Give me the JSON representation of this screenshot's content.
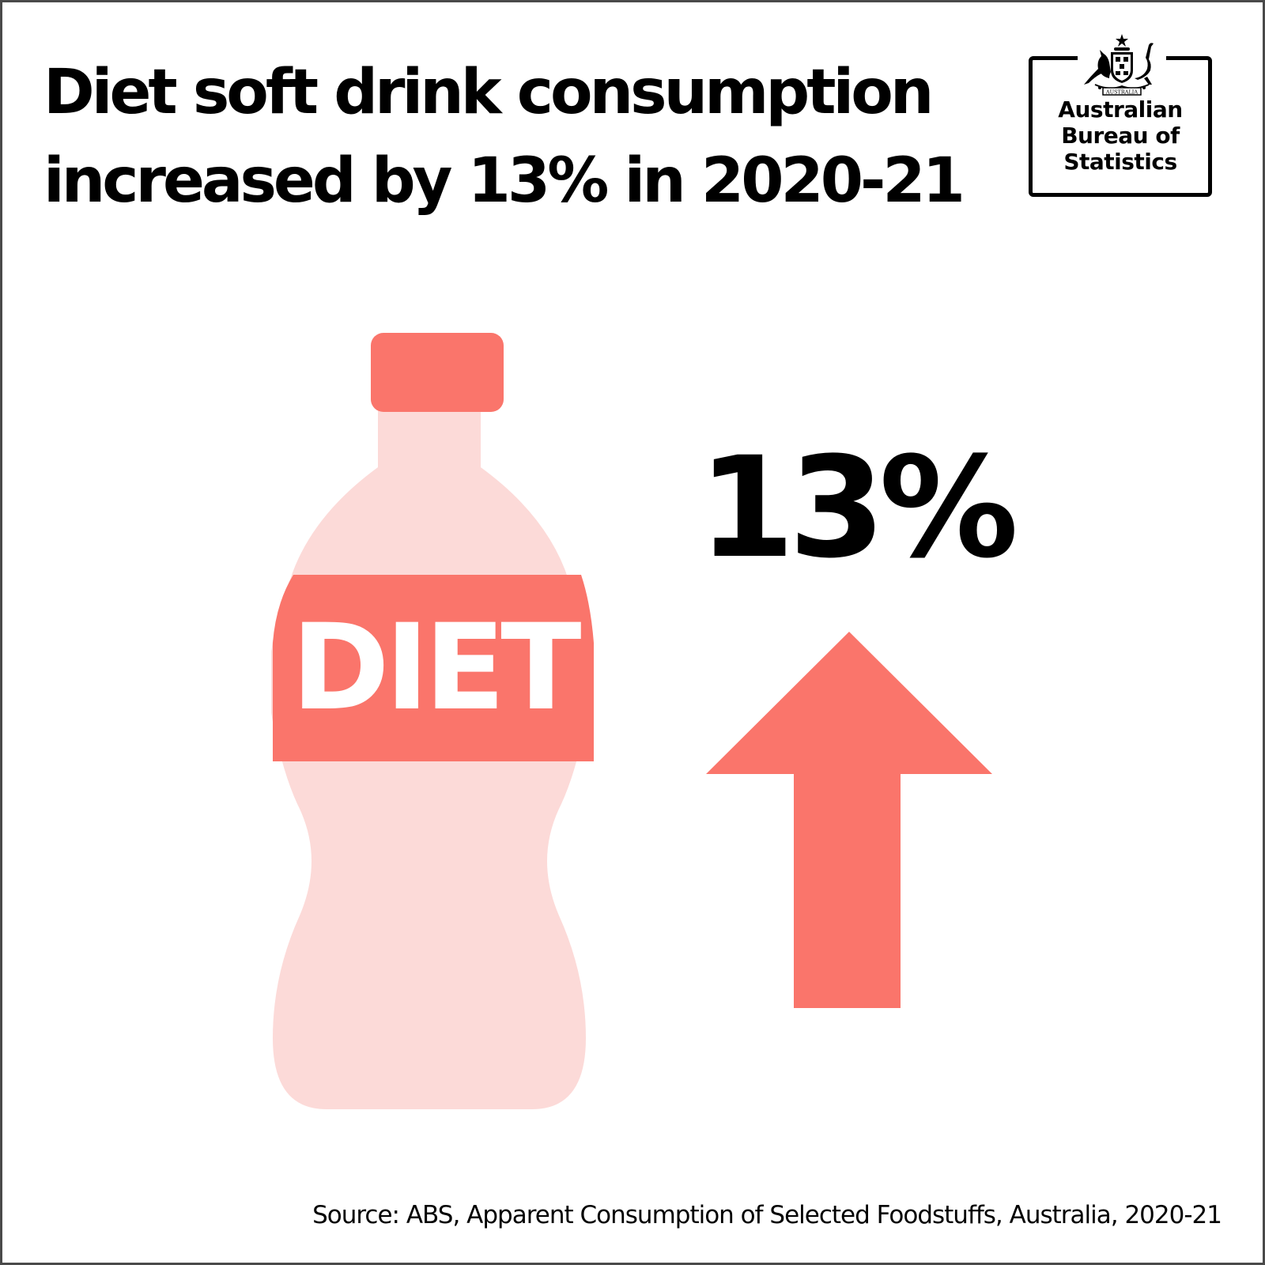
{
  "title": {
    "line1": "Diet soft drink consumption",
    "line2": "increased by 13% in 2020-21"
  },
  "logo": {
    "crest_text": "AUSTRALIA",
    "line1": "Australian",
    "line2": "Bureau of",
    "line3": "Statistics"
  },
  "bottle": {
    "label": "DIET",
    "label_color": "#FA756B",
    "body_color": "#FCDAD8"
  },
  "change": {
    "value": "13%",
    "direction": "up",
    "arrow_color": "#FA756B"
  },
  "source": "Source: ABS, Apparent Consumption of Selected Foodstuffs, Australia, 2020-21"
}
